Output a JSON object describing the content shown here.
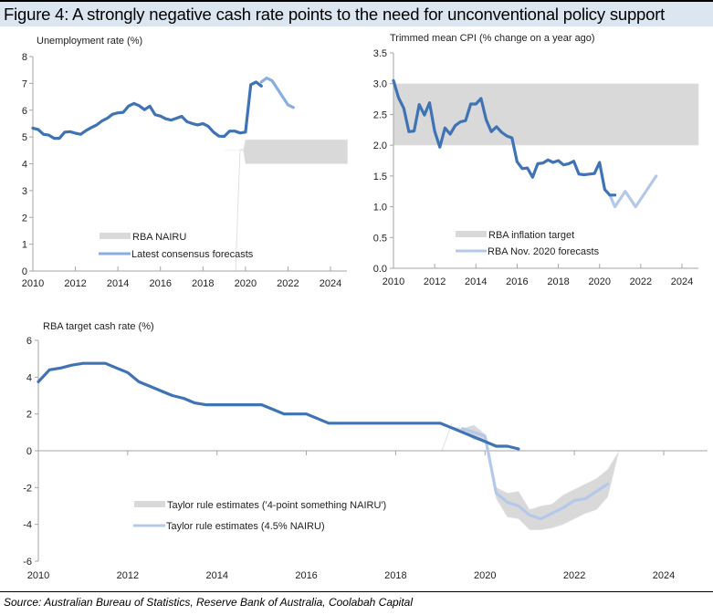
{
  "figure": {
    "title": "Figure 4: A strongly negative cash rate points to the need for unconventional policy support",
    "source": "Source: Australian Bureau of Statistics, Reserve Bank of Australia, Coolabah Capital"
  },
  "colors": {
    "actual": "#3f73b4",
    "forecast_unemp": "#8aaee0",
    "forecast_light": "#b4c9ea",
    "band": "#d9d9d9",
    "axis": "#a6a6a6"
  },
  "chart_data": [
    {
      "type": "line",
      "title": "Unemployment rate (%)",
      "xlabel": "",
      "ylabel": "Unemployment rate (%)",
      "xlim": [
        2010,
        2024.8
      ],
      "ylim": [
        0,
        8
      ],
      "x_ticks": [
        "2010",
        "2012",
        "2014",
        "2016",
        "2018",
        "2020",
        "2022",
        "2024"
      ],
      "y_ticks": [
        "0",
        "1",
        "2",
        "3",
        "4",
        "5",
        "6",
        "7",
        "8"
      ],
      "legend": [
        "RBA NAIRU",
        "Latest consensus forecasts"
      ],
      "legend_position": "bottom-center",
      "series": [
        {
          "name": "Unemployment rate",
          "x": [
            2010.0,
            2010.25,
            2010.5,
            2010.75,
            2011.0,
            2011.25,
            2011.5,
            2011.75,
            2012.0,
            2012.25,
            2012.5,
            2012.75,
            2013.0,
            2013.25,
            2013.5,
            2013.75,
            2014.0,
            2014.25,
            2014.5,
            2014.75,
            2015.0,
            2015.25,
            2015.5,
            2015.75,
            2016.0,
            2016.25,
            2016.5,
            2016.75,
            2017.0,
            2017.25,
            2017.5,
            2017.75,
            2018.0,
            2018.25,
            2018.5,
            2018.75,
            2019.0,
            2019.25,
            2019.5,
            2019.75,
            2020.0,
            2020.25,
            2020.5,
            2020.75
          ],
          "values": [
            5.33,
            5.28,
            5.1,
            5.07,
            4.95,
            4.95,
            5.18,
            5.2,
            5.14,
            5.1,
            5.24,
            5.35,
            5.45,
            5.6,
            5.7,
            5.85,
            5.9,
            5.92,
            6.15,
            6.25,
            6.17,
            6.02,
            6.15,
            5.83,
            5.78,
            5.68,
            5.63,
            5.7,
            5.77,
            5.57,
            5.5,
            5.45,
            5.5,
            5.4,
            5.18,
            5.03,
            5.02,
            5.22,
            5.22,
            5.15,
            5.18,
            6.95,
            7.05,
            6.9
          ]
        },
        {
          "name": "Latest consensus forecasts",
          "x": [
            2020.75,
            2021.0,
            2021.25,
            2021.5,
            2021.75,
            2022.0,
            2022.25
          ],
          "values": [
            7.05,
            7.2,
            7.1,
            6.8,
            6.5,
            6.2,
            6.1
          ]
        },
        {
          "name": "RBA NAIRU",
          "type": "band",
          "x": [
            2019.0,
            2019.9,
            2020.0,
            2024.8
          ],
          "lower": [
            4.5,
            4.5,
            4.0,
            4.0
          ],
          "upper": [
            4.5,
            4.5,
            4.9,
            4.9
          ]
        }
      ]
    },
    {
      "type": "line",
      "title": "Trimmed mean CPI (% change on a year ago)",
      "xlabel": "",
      "ylabel": "Trimmed mean CPI (% change on a year ago)",
      "xlim": [
        2010,
        2024.8
      ],
      "ylim": [
        0,
        3.5
      ],
      "x_ticks": [
        "2010",
        "2012",
        "2014",
        "2016",
        "2018",
        "2020",
        "2022",
        "2024"
      ],
      "y_ticks": [
        "0.0",
        "0.5",
        "1.0",
        "1.5",
        "2.0",
        "2.5",
        "3.0",
        "3.5"
      ],
      "legend": [
        "RBA inflation target",
        "RBA Nov. 2020 forecasts"
      ],
      "legend_position": "bottom-center",
      "series": [
        {
          "name": "Trimmed mean CPI",
          "x": [
            2010.0,
            2010.25,
            2010.5,
            2010.75,
            2011.0,
            2011.25,
            2011.5,
            2011.75,
            2012.0,
            2012.25,
            2012.5,
            2012.75,
            2013.0,
            2013.25,
            2013.5,
            2013.75,
            2014.0,
            2014.25,
            2014.5,
            2014.75,
            2015.0,
            2015.25,
            2015.5,
            2015.75,
            2016.0,
            2016.25,
            2016.5,
            2016.75,
            2017.0,
            2017.25,
            2017.5,
            2017.75,
            2018.0,
            2018.25,
            2018.5,
            2018.75,
            2019.0,
            2019.25,
            2019.5,
            2019.75,
            2020.0,
            2020.25,
            2020.5,
            2020.75
          ],
          "values": [
            3.05,
            2.77,
            2.6,
            2.22,
            2.23,
            2.66,
            2.49,
            2.69,
            2.23,
            1.97,
            2.28,
            2.18,
            2.32,
            2.38,
            2.4,
            2.67,
            2.67,
            2.76,
            2.41,
            2.22,
            2.3,
            2.21,
            2.15,
            2.12,
            1.73,
            1.62,
            1.63,
            1.48,
            1.7,
            1.71,
            1.76,
            1.72,
            1.75,
            1.68,
            1.7,
            1.74,
            1.53,
            1.52,
            1.53,
            1.54,
            1.72,
            1.28,
            1.19,
            1.19
          ]
        },
        {
          "name": "RBA Nov. 2020 forecasts",
          "x": [
            2020.5,
            2020.75,
            2021.25,
            2021.75,
            2022.75
          ],
          "values": [
            1.19,
            1.0,
            1.25,
            1.0,
            1.5
          ]
        },
        {
          "name": "RBA inflation target",
          "type": "band",
          "x": [
            2010.0,
            2024.8
          ],
          "lower": [
            2.0,
            2.0
          ],
          "upper": [
            3.0,
            3.0
          ]
        }
      ]
    },
    {
      "type": "line",
      "title": "RBA target cash rate (%)",
      "xlabel": "",
      "ylabel": "RBA target cash rate (%)",
      "xlim": [
        2010,
        2025
      ],
      "ylim": [
        -6,
        6
      ],
      "x_ticks": [
        "2010",
        "2012",
        "2014",
        "2016",
        "2018",
        "2020",
        "2022",
        "2024"
      ],
      "y_ticks": [
        "-6",
        "-4",
        "-2",
        "0",
        "2",
        "4",
        "6"
      ],
      "legend": [
        "Taylor rule estimates ('4-point something NAIRU')",
        "Taylor rule estimates (4.5% NAIRU)"
      ],
      "legend_position": "bottom-left",
      "series": [
        {
          "name": "RBA target cash rate",
          "x": [
            2010.0,
            2010.25,
            2010.5,
            2010.75,
            2011.0,
            2011.5,
            2011.75,
            2012.0,
            2012.25,
            2012.5,
            2012.75,
            2013.0,
            2013.25,
            2013.5,
            2013.75,
            2014.0,
            2015.0,
            2015.25,
            2015.5,
            2016.0,
            2016.25,
            2016.5,
            2016.75,
            2019.0,
            2019.25,
            2019.5,
            2019.75,
            2020.0,
            2020.25,
            2020.5,
            2020.75
          ],
          "values": [
            3.75,
            4.4,
            4.5,
            4.65,
            4.75,
            4.75,
            4.5,
            4.25,
            3.75,
            3.5,
            3.25,
            3.0,
            2.85,
            2.6,
            2.5,
            2.5,
            2.5,
            2.25,
            2.0,
            2.0,
            1.75,
            1.5,
            1.5,
            1.5,
            1.25,
            1.0,
            0.75,
            0.5,
            0.25,
            0.25,
            0.1
          ]
        },
        {
          "name": "Taylor rule estimates (4.5% NAIRU)",
          "x": [
            2019.5,
            2019.75,
            2020.0,
            2020.25,
            2020.5,
            2020.75,
            2021.0,
            2021.25,
            2021.5,
            2021.75,
            2022.0,
            2022.25,
            2022.5,
            2022.75
          ],
          "values": [
            1.2,
            1.0,
            0.8,
            -2.3,
            -2.8,
            -3.0,
            -3.5,
            -3.7,
            -3.4,
            -3.1,
            -2.7,
            -2.6,
            -2.2,
            -1.8
          ]
        },
        {
          "name": "Taylor rule estimates ('4-point something NAIRU')",
          "type": "band",
          "x": [
            2018.9,
            2019.5,
            2019.75,
            2020.0,
            2020.25,
            2020.5,
            2020.75,
            2021.0,
            2021.25,
            2021.5,
            2021.75,
            2022.0,
            2022.25,
            2022.5,
            2022.75,
            2023.0
          ],
          "lower": [
            1.5,
            1.0,
            0.6,
            0.5,
            -2.6,
            -3.6,
            -3.7,
            -4.3,
            -4.3,
            -4.2,
            -4.0,
            -3.7,
            -3.4,
            -3.2,
            -2.5,
            0.0
          ],
          "upper": [
            1.5,
            1.2,
            1.4,
            0.9,
            -2.0,
            -2.3,
            -2.2,
            -3.2,
            -3.0,
            -2.9,
            -2.4,
            -2.1,
            -1.8,
            -1.5,
            -1.0,
            0.0
          ]
        }
      ]
    }
  ]
}
